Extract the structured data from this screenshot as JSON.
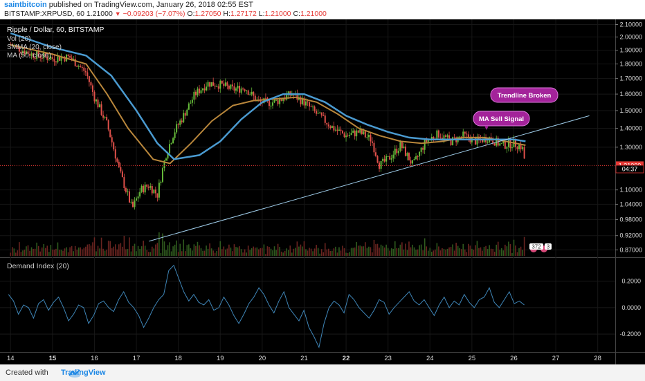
{
  "header": {
    "author": "saintbitcoin",
    "published": "published on TradingView.com, January 26, 2018 02:55 EST",
    "symbol_line": "BITSTAMP:XRPUSD, 60",
    "last": "1.21000",
    "change": "−0.09203 (−7.07%)",
    "o_label": "O:",
    "o": "1.27050",
    "h_label": "H:",
    "h": "1.27172",
    "l_label": "L:",
    "l": "1.21000",
    "c_label": "C:",
    "c": "1.21000"
  },
  "legend": {
    "title": "Ripple / Dollar, 60, BITSTAMP",
    "vol": "Vol (20)",
    "smma": "SMMA (20, close)",
    "ma": "MA (50, close)"
  },
  "price_axis": {
    "ticks": [
      "2.10000",
      "2.00000",
      "1.90000",
      "1.80000",
      "1.70000",
      "1.60000",
      "1.50000",
      "1.40000",
      "1.30000",
      "1.21000",
      "1.10000",
      "1.04000",
      "0.98000",
      "0.92000",
      "0.87000"
    ],
    "current_price": "1.21000",
    "countdown": "04:37"
  },
  "indicator": {
    "title": "Demand Index (20)",
    "ticks": [
      "0.2000",
      "0.0000",
      "-0.2000"
    ]
  },
  "time_axis": {
    "labels": [
      "14",
      "15",
      "16",
      "17",
      "18",
      "19",
      "20",
      "21",
      "22",
      "23",
      "24",
      "25",
      "26",
      "27",
      "28"
    ]
  },
  "annotations": {
    "trendline_broken": "Trendline Broken",
    "ma_sell_signal": "MA Sell Signal",
    "badge_count": "372",
    "badge_small": "3"
  },
  "footer": {
    "created_with": "Created with",
    "brand": "TradingView"
  },
  "colors": {
    "background": "#000000",
    "candle_up": "#66bb3a",
    "candle_down": "#e0504a",
    "smma": "#b8863b",
    "ma": "#4a9ad0",
    "trendline": "#9ecbe8",
    "demand_index": "#3f86b8",
    "callout": "#a3239a",
    "current_price": "#e53935"
  },
  "chart_data": [
    {
      "type": "candlestick",
      "title": "Ripple / Dollar, 60, BITSTAMP",
      "x_label_days": [
        "14",
        "15",
        "16",
        "17",
        "18",
        "19",
        "20",
        "21",
        "22",
        "23",
        "24",
        "25",
        "26",
        "27",
        "28"
      ],
      "ylim": [
        0.85,
        2.12
      ],
      "y_scale": "log",
      "close_path": [
        {
          "day": 14.0,
          "v": 1.94
        },
        {
          "day": 14.5,
          "v": 1.87
        },
        {
          "day": 15.0,
          "v": 1.84
        },
        {
          "day": 15.4,
          "v": 1.85
        },
        {
          "day": 15.8,
          "v": 1.74
        },
        {
          "day": 16.0,
          "v": 1.58
        },
        {
          "day": 16.3,
          "v": 1.42
        },
        {
          "day": 16.6,
          "v": 1.18
        },
        {
          "day": 16.9,
          "v": 1.02
        },
        {
          "day": 17.1,
          "v": 1.1
        },
        {
          "day": 17.3,
          "v": 1.12
        },
        {
          "day": 17.5,
          "v": 1.08
        },
        {
          "day": 17.7,
          "v": 1.26
        },
        {
          "day": 17.9,
          "v": 1.38
        },
        {
          "day": 18.1,
          "v": 1.46
        },
        {
          "day": 18.4,
          "v": 1.6
        },
        {
          "day": 18.7,
          "v": 1.67
        },
        {
          "day": 19.0,
          "v": 1.66
        },
        {
          "day": 19.3,
          "v": 1.63
        },
        {
          "day": 19.6,
          "v": 1.64
        },
        {
          "day": 19.9,
          "v": 1.55
        },
        {
          "day": 20.3,
          "v": 1.55
        },
        {
          "day": 20.7,
          "v": 1.6
        },
        {
          "day": 21.0,
          "v": 1.55
        },
        {
          "day": 21.3,
          "v": 1.48
        },
        {
          "day": 21.7,
          "v": 1.4
        },
        {
          "day": 22.0,
          "v": 1.36
        },
        {
          "day": 22.3,
          "v": 1.38
        },
        {
          "day": 22.6,
          "v": 1.34
        },
        {
          "day": 22.8,
          "v": 1.21
        },
        {
          "day": 23.0,
          "v": 1.24
        },
        {
          "day": 23.3,
          "v": 1.31
        },
        {
          "day": 23.6,
          "v": 1.21
        },
        {
          "day": 23.9,
          "v": 1.33
        },
        {
          "day": 24.2,
          "v": 1.37
        },
        {
          "day": 24.5,
          "v": 1.33
        },
        {
          "day": 24.8,
          "v": 1.36
        },
        {
          "day": 25.1,
          "v": 1.33
        },
        {
          "day": 25.4,
          "v": 1.35
        },
        {
          "day": 25.7,
          "v": 1.31
        },
        {
          "day": 26.0,
          "v": 1.32
        },
        {
          "day": 26.2,
          "v": 1.3
        },
        {
          "day": 26.28,
          "v": 1.21
        }
      ],
      "smma_20": [
        {
          "day": 14.0,
          "v": 1.94
        },
        {
          "day": 15.0,
          "v": 1.87
        },
        {
          "day": 15.8,
          "v": 1.8
        },
        {
          "day": 16.3,
          "v": 1.6
        },
        {
          "day": 16.8,
          "v": 1.4
        },
        {
          "day": 17.4,
          "v": 1.24
        },
        {
          "day": 17.8,
          "v": 1.22
        },
        {
          "day": 18.3,
          "v": 1.32
        },
        {
          "day": 18.8,
          "v": 1.44
        },
        {
          "day": 19.3,
          "v": 1.53
        },
        {
          "day": 19.8,
          "v": 1.56
        },
        {
          "day": 20.3,
          "v": 1.57
        },
        {
          "day": 20.8,
          "v": 1.58
        },
        {
          "day": 21.3,
          "v": 1.55
        },
        {
          "day": 21.8,
          "v": 1.48
        },
        {
          "day": 22.3,
          "v": 1.4
        },
        {
          "day": 22.8,
          "v": 1.36
        },
        {
          "day": 23.3,
          "v": 1.33
        },
        {
          "day": 23.8,
          "v": 1.32
        },
        {
          "day": 24.3,
          "v": 1.33
        },
        {
          "day": 24.8,
          "v": 1.35
        },
        {
          "day": 25.3,
          "v": 1.35
        },
        {
          "day": 25.8,
          "v": 1.33
        },
        {
          "day": 26.28,
          "v": 1.31
        }
      ],
      "ma_50": [
        {
          "day": 14.0,
          "v": 2.03
        },
        {
          "day": 15.0,
          "v": 1.92
        },
        {
          "day": 15.8,
          "v": 1.86
        },
        {
          "day": 16.4,
          "v": 1.72
        },
        {
          "day": 17.0,
          "v": 1.5
        },
        {
          "day": 17.5,
          "v": 1.32
        },
        {
          "day": 17.9,
          "v": 1.24
        },
        {
          "day": 18.5,
          "v": 1.26
        },
        {
          "day": 19.0,
          "v": 1.33
        },
        {
          "day": 19.5,
          "v": 1.45
        },
        {
          "day": 20.0,
          "v": 1.55
        },
        {
          "day": 20.5,
          "v": 1.6
        },
        {
          "day": 21.0,
          "v": 1.6
        },
        {
          "day": 21.5,
          "v": 1.55
        },
        {
          "day": 22.0,
          "v": 1.47
        },
        {
          "day": 22.5,
          "v": 1.42
        },
        {
          "day": 23.0,
          "v": 1.38
        },
        {
          "day": 23.5,
          "v": 1.35
        },
        {
          "day": 24.0,
          "v": 1.34
        },
        {
          "day": 24.5,
          "v": 1.34
        },
        {
          "day": 25.0,
          "v": 1.34
        },
        {
          "day": 25.5,
          "v": 1.34
        },
        {
          "day": 26.0,
          "v": 1.34
        },
        {
          "day": 26.28,
          "v": 1.33
        }
      ],
      "trendline": [
        {
          "day": 17.3,
          "v": 0.9
        },
        {
          "day": 27.8,
          "v": 1.47
        }
      ],
      "current_price": 1.21
    },
    {
      "type": "line",
      "title": "Demand Index (20)",
      "ylim": [
        -0.32,
        0.35
      ],
      "ticks": [
        0.2,
        0.0,
        -0.2
      ],
      "series": [
        {
          "values": [
            0.1,
            0.05,
            -0.05,
            0.02,
            0.0,
            -0.08,
            0.03,
            0.06,
            -0.02,
            0.04,
            0.08,
            0.0,
            -0.1,
            -0.05,
            0.02,
            0.0,
            -0.12,
            -0.06,
            0.03,
            0.05,
            0.0,
            -0.03,
            0.06,
            0.12,
            0.04,
            0.0,
            -0.06,
            -0.15,
            -0.08,
            0.0,
            0.06,
            0.1,
            0.28,
            0.32,
            0.22,
            0.12,
            0.05,
            0.1,
            0.04,
            0.02,
            0.06,
            -0.02,
            0.0,
            0.08,
            0.02,
            -0.06,
            -0.12,
            -0.05,
            0.03,
            0.08,
            0.15,
            0.1,
            0.02,
            -0.04,
            0.05,
            0.12,
            0.0,
            -0.05,
            -0.1,
            -0.02,
            -0.15,
            -0.22,
            -0.3,
            -0.12,
            0.0,
            0.05,
            0.02,
            -0.04,
            0.1,
            0.06,
            0.0,
            -0.04,
            -0.08,
            -0.02,
            0.06,
            0.04,
            -0.05,
            0.0,
            0.04,
            0.08,
            0.12,
            0.05,
            0.02,
            0.06,
            0.0,
            -0.06,
            0.02,
            0.08,
            0.0,
            0.05,
            0.02,
            0.1,
            0.04,
            0.0,
            0.06,
            0.08,
            0.15,
            0.04,
            0.0,
            0.06,
            0.12,
            0.03,
            0.05,
            0.02
          ]
        }
      ]
    }
  ]
}
